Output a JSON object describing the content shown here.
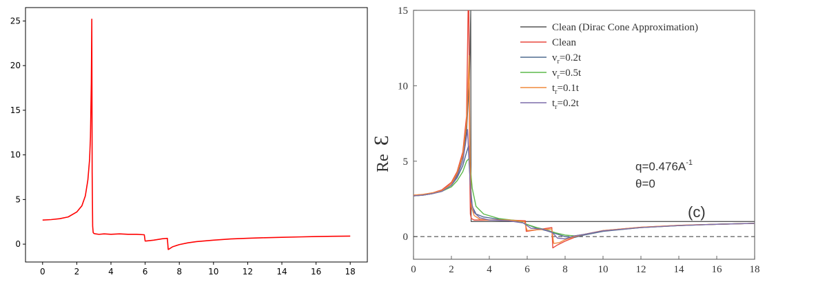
{
  "chart_data": [
    {
      "type": "line",
      "title": "",
      "xlabel": "",
      "ylabel": "",
      "xlim": [
        -1,
        19
      ],
      "ylim": [
        -2,
        26.5
      ],
      "xticks": [
        0,
        2,
        4,
        6,
        8,
        10,
        12,
        14,
        16,
        18
      ],
      "yticks": [
        0,
        5,
        10,
        15,
        20,
        25
      ],
      "xtick_labels": [
        "0",
        "2",
        "4",
        "6",
        "8",
        "10",
        "12",
        "14",
        "16",
        "18"
      ],
      "ytick_labels": [
        "0",
        "5",
        "10",
        "15",
        "20",
        "25"
      ],
      "grid": false,
      "series": [
        {
          "color": "#ff0000",
          "x": [
            0,
            0.5,
            1.0,
            1.5,
            2.0,
            2.3,
            2.5,
            2.65,
            2.75,
            2.8,
            2.85,
            2.88,
            2.9,
            2.93,
            2.96,
            3.0,
            3.1,
            3.3,
            3.6,
            4.0,
            4.5,
            5.0,
            5.5,
            5.95,
            6.0,
            6.05,
            6.5,
            7.0,
            7.3,
            7.35,
            7.4,
            7.6,
            8.0,
            8.5,
            9.0,
            10.0,
            11.0,
            12.0,
            13.0,
            14.0,
            15.0,
            16.0,
            17.0,
            18.0
          ],
          "y": [
            2.7,
            2.75,
            2.85,
            3.05,
            3.6,
            4.3,
            5.4,
            7.2,
            9.5,
            12.0,
            18.0,
            25.2,
            8.0,
            2.0,
            1.3,
            1.2,
            1.15,
            1.1,
            1.15,
            1.1,
            1.15,
            1.1,
            1.1,
            1.05,
            0.35,
            0.35,
            0.45,
            0.6,
            0.65,
            -0.6,
            -0.55,
            -0.3,
            -0.05,
            0.15,
            0.28,
            0.45,
            0.58,
            0.66,
            0.72,
            0.77,
            0.81,
            0.85,
            0.88,
            0.9
          ]
        }
      ]
    },
    {
      "type": "line",
      "title": "",
      "xlabel": "",
      "ylabel": "Re",
      "ylabel_symbol": "Ɛ",
      "xlim": [
        0,
        18
      ],
      "ylim": [
        -1.5,
        15
      ],
      "xticks": [
        0,
        2,
        4,
        6,
        8,
        10,
        12,
        14,
        16,
        18
      ],
      "yticks": [
        0,
        5,
        10,
        15
      ],
      "xtick_labels": [
        "0",
        "2",
        "4",
        "6",
        "8",
        "10",
        "12",
        "14",
        "16",
        "18"
      ],
      "ytick_labels": [
        "0",
        "5",
        "10",
        "15"
      ],
      "grid": false,
      "legend_position": "top-right",
      "annotations": [
        "q=0.476A",
        "-1",
        "θ=0",
        "(c)"
      ],
      "reference_line": {
        "y": 0,
        "style": "dashed"
      },
      "series": [
        {
          "name": "Clean (Dirac Cone Approximation)",
          "color": "#555555",
          "x": [
            0,
            0.5,
            1.0,
            1.5,
            2.0,
            2.3,
            2.6,
            2.8,
            2.95,
            3.02,
            3.04,
            3.06,
            3.5,
            6.0,
            10.0,
            18.0
          ],
          "y": [
            2.7,
            2.75,
            2.85,
            3.05,
            3.5,
            4.1,
            5.3,
            7.0,
            10.5,
            15.5,
            1.0,
            1.0,
            1.0,
            1.0,
            1.0,
            1.0
          ]
        },
        {
          "name": "Clean",
          "color": "#e8473b",
          "x": [
            0,
            0.5,
            1.0,
            1.5,
            2.0,
            2.3,
            2.6,
            2.8,
            2.88,
            2.92,
            2.96,
            3.0,
            3.05,
            3.2,
            3.5,
            4.0,
            5.0,
            5.9,
            5.95,
            6.5,
            7.3,
            7.35,
            7.6,
            8.0,
            8.5,
            9.0,
            10.0,
            12.0,
            14.0,
            16.0,
            18.0
          ],
          "y": [
            2.75,
            2.8,
            2.9,
            3.1,
            3.6,
            4.3,
            5.6,
            8.0,
            15.5,
            15.5,
            5.0,
            1.5,
            1.2,
            1.1,
            1.1,
            1.1,
            1.1,
            1.05,
            0.35,
            0.45,
            0.6,
            -0.75,
            -0.55,
            -0.3,
            -0.05,
            0.15,
            0.4,
            0.62,
            0.75,
            0.82,
            0.88
          ]
        },
        {
          "name": "v_r=0.2t",
          "color": "#4e6b8f",
          "x": [
            0,
            0.5,
            1.0,
            1.5,
            2.0,
            2.3,
            2.6,
            2.8,
            2.9,
            3.0,
            3.1,
            3.3,
            3.7,
            4.5,
            5.5,
            6.0,
            6.5,
            7.0,
            7.5,
            8.0,
            8.5,
            9.0,
            10.0,
            12.0,
            14.0,
            16.0,
            18.0
          ],
          "y": [
            2.7,
            2.75,
            2.85,
            3.0,
            3.4,
            3.9,
            4.7,
            5.6,
            6.0,
            3.5,
            2.0,
            1.5,
            1.3,
            1.15,
            1.05,
            0.8,
            0.55,
            0.4,
            0.2,
            0.0,
            -0.05,
            0.1,
            0.35,
            0.6,
            0.73,
            0.82,
            0.88
          ]
        },
        {
          "name": "v_r=0.5t",
          "color": "#5cb84a",
          "x": [
            0,
            0.5,
            1.0,
            1.5,
            2.0,
            2.3,
            2.6,
            2.8,
            2.95,
            3.1,
            3.3,
            3.7,
            4.5,
            5.5,
            6.0,
            6.5,
            7.0,
            7.5,
            8.0,
            8.5,
            9.0,
            10.0,
            12.0,
            14.0,
            16.0,
            18.0
          ],
          "y": [
            2.7,
            2.75,
            2.85,
            3.0,
            3.3,
            3.7,
            4.3,
            5.0,
            5.2,
            3.2,
            2.0,
            1.5,
            1.2,
            1.05,
            0.8,
            0.6,
            0.45,
            0.25,
            0.1,
            0.05,
            0.15,
            0.38,
            0.6,
            0.73,
            0.82,
            0.88
          ]
        },
        {
          "name": "t_r=0.1t",
          "color": "#f08a3c",
          "x": [
            0,
            0.5,
            1.0,
            1.5,
            2.0,
            2.3,
            2.6,
            2.8,
            2.88,
            2.93,
            2.98,
            3.05,
            3.2,
            3.5,
            4.0,
            5.0,
            5.85,
            6.0,
            6.5,
            7.3,
            7.4,
            7.7,
            8.0,
            8.5,
            9.0,
            10.0,
            12.0,
            14.0,
            16.0,
            18.0
          ],
          "y": [
            2.75,
            2.8,
            2.9,
            3.05,
            3.5,
            4.2,
            5.4,
            7.5,
            10.0,
            12.0,
            5.5,
            2.0,
            1.4,
            1.15,
            1.1,
            1.1,
            1.0,
            0.4,
            0.45,
            0.5,
            -0.45,
            -0.4,
            -0.2,
            0.0,
            0.15,
            0.4,
            0.62,
            0.75,
            0.82,
            0.88
          ]
        },
        {
          "name": "t_r=0.2t",
          "color": "#7b6baa",
          "x": [
            0,
            0.5,
            1.0,
            1.5,
            2.0,
            2.3,
            2.6,
            2.75,
            2.85,
            2.95,
            3.05,
            3.2,
            3.5,
            4.0,
            5.0,
            5.8,
            6.2,
            6.8,
            7.3,
            7.6,
            8.0,
            8.5,
            9.0,
            10.0,
            12.0,
            14.0,
            16.0,
            18.0
          ],
          "y": [
            2.7,
            2.75,
            2.85,
            3.0,
            3.4,
            4.0,
            5.0,
            6.2,
            7.1,
            4.5,
            2.3,
            1.6,
            1.25,
            1.1,
            1.05,
            0.9,
            0.55,
            0.5,
            0.3,
            -0.1,
            -0.15,
            0.05,
            0.15,
            0.38,
            0.6,
            0.73,
            0.82,
            0.88
          ]
        }
      ],
      "legend": [
        {
          "label": "Clean (Dirac Cone Approximation)",
          "color": "#555555"
        },
        {
          "label": "Clean",
          "color": "#e8473b"
        },
        {
          "label": "v",
          "sub": "r",
          "suffix": "=0.2t",
          "color": "#4e6b8f"
        },
        {
          "label": "v",
          "sub": "r",
          "suffix": "=0.5t",
          "color": "#5cb84a"
        },
        {
          "label": "t",
          "sub": "r",
          "suffix": "=0.1t",
          "color": "#f08a3c"
        },
        {
          "label": "t",
          "sub": "r",
          "suffix": "=0.2t",
          "color": "#7b6baa"
        }
      ]
    }
  ]
}
